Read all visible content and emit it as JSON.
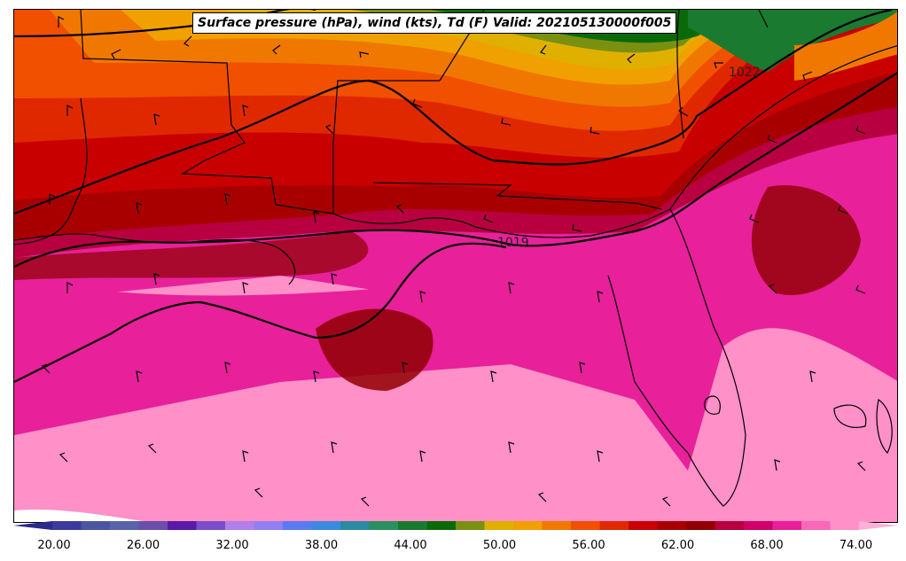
{
  "title": "Surface pressure (hPa), wind (kts), Td (F) Valid: 202105130000f005",
  "colors": {
    "levels": [
      "#3b3b9c",
      "#4b55a0",
      "#5a62a8",
      "#6a4fa8",
      "#5a1aa8",
      "#7a4ec8",
      "#b080e8",
      "#9080f0",
      "#5a7af0",
      "#3a8ae0",
      "#2a8aa0",
      "#2a9060",
      "#1a7a30",
      "#0a6a0a",
      "#7a9010",
      "#e0b000",
      "#f0a000",
      "#f07800",
      "#f05000",
      "#e02800",
      "#c80000",
      "#a80000",
      "#900000",
      "#b80040",
      "#d0006a",
      "#e8209a",
      "#f868b8",
      "#ff90c8"
    ]
  },
  "colorbar": {
    "ticks": [
      "20.00",
      "26.00",
      "32.00",
      "38.00",
      "44.00",
      "50.00",
      "56.00",
      "62.00",
      "68.00",
      "74.00"
    ]
  },
  "isobars": [
    "1022",
    "1019"
  ]
}
